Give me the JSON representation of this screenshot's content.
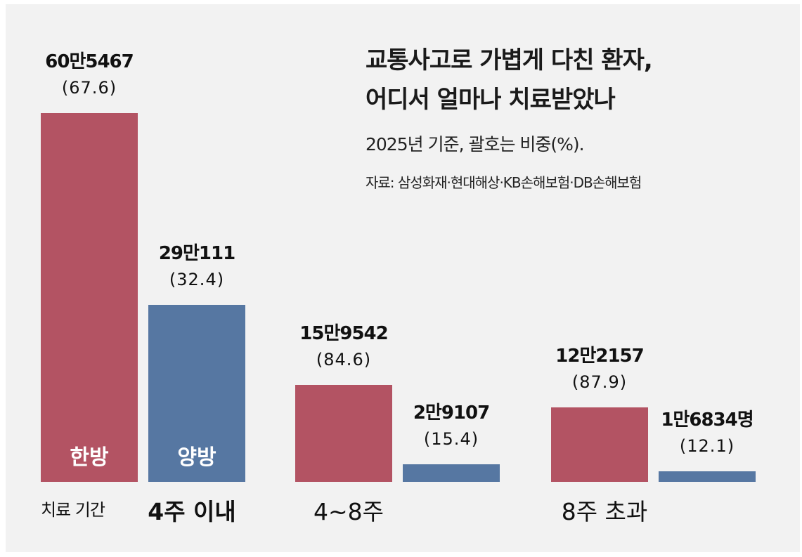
{
  "title_line1": "교통사고로 가볍게 다친 환자,",
  "title_line2": "어디서 얼마나 치료받았나",
  "subtitle": "2025년 기준, 괄호는 비중(%).",
  "source": "자료: 삼성화재·현대해상·KB손해보험·DB손해보험",
  "axis_prefix": "치료 기간",
  "legend": {
    "korean_medicine": "한방",
    "western_medicine": "양방"
  },
  "colors": {
    "korean_medicine": "#b35363",
    "western_medicine": "#5677a2",
    "background": "#f2f2f2"
  },
  "chart_data": {
    "type": "bar",
    "categories": [
      "4주 이내",
      "4~8주",
      "8주 초과"
    ],
    "series": [
      {
        "name": "한방",
        "values": [
          605467,
          159542,
          122157
        ],
        "value_labels": [
          "60만5467",
          "15만9542",
          "12만2157"
        ],
        "pct_labels": [
          "(67.6)",
          "(84.6)",
          "(87.9)"
        ],
        "percent": [
          67.6,
          84.6,
          87.9
        ]
      },
      {
        "name": "양방",
        "values": [
          290111,
          29107,
          16834
        ],
        "value_labels": [
          "29만111",
          "2만9107",
          "1만6834명"
        ],
        "pct_labels": [
          "(32.4)",
          "(15.4)",
          "(12.1)"
        ],
        "percent": [
          32.4,
          15.4,
          12.1
        ]
      }
    ],
    "title": "교통사고로 가볍게 다친 환자, 어디서 얼마나 치료받았나",
    "xlabel": "치료 기간",
    "ylabel": "",
    "unit": "명",
    "grid": false
  }
}
